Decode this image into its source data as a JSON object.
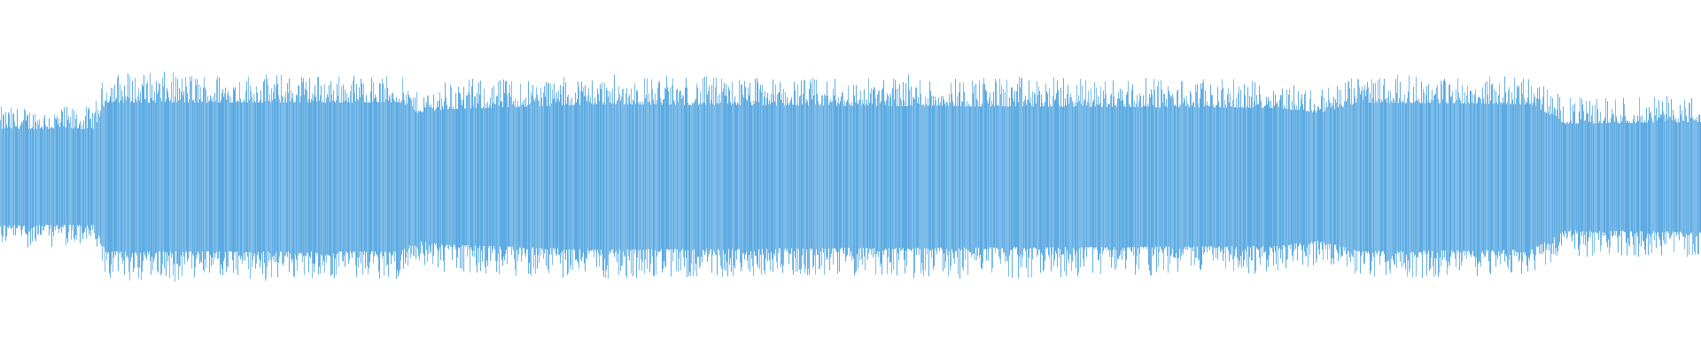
{
  "chart_data": {
    "type": "area",
    "title": "",
    "xlabel": "",
    "ylabel": "",
    "grid": false,
    "legend": "none",
    "ylim": [
      -1,
      1
    ],
    "xlim": [
      0,
      1
    ],
    "color": "#5dabe2",
    "background": "#ffffff",
    "envelope": [
      {
        "t": 0.0,
        "peak": 0.4,
        "body": 0.27
      },
      {
        "t": 0.055,
        "peak": 0.4,
        "body": 0.27
      },
      {
        "t": 0.062,
        "peak": 0.6,
        "body": 0.42
      },
      {
        "t": 0.235,
        "peak": 0.58,
        "body": 0.42
      },
      {
        "t": 0.245,
        "peak": 0.48,
        "body": 0.36
      },
      {
        "t": 0.26,
        "peak": 0.55,
        "body": 0.38
      },
      {
        "t": 0.35,
        "peak": 0.58,
        "body": 0.41
      },
      {
        "t": 0.5,
        "peak": 0.56,
        "body": 0.4
      },
      {
        "t": 0.53,
        "peak": 0.58,
        "body": 0.4
      },
      {
        "t": 0.75,
        "peak": 0.55,
        "body": 0.39
      },
      {
        "t": 0.775,
        "peak": 0.5,
        "body": 0.36
      },
      {
        "t": 0.8,
        "peak": 0.58,
        "body": 0.42
      },
      {
        "t": 0.9,
        "peak": 0.57,
        "body": 0.41
      },
      {
        "t": 0.92,
        "peak": 0.45,
        "body": 0.3
      },
      {
        "t": 1.0,
        "peak": 0.46,
        "body": 0.31
      }
    ]
  }
}
